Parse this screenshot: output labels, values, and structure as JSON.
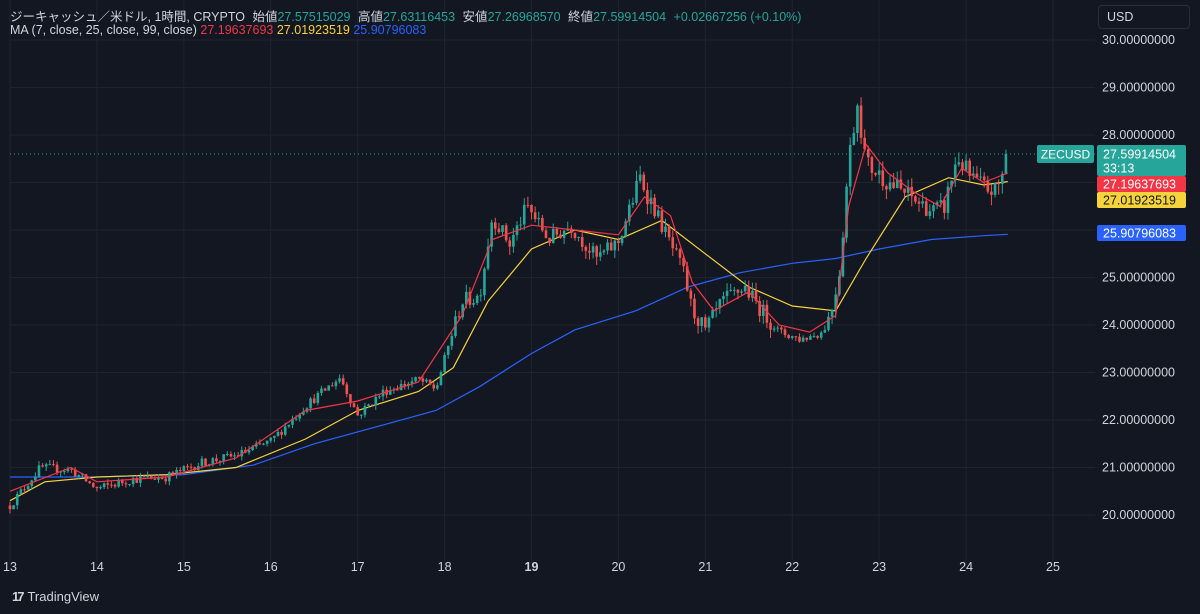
{
  "header": {
    "symbol_title": "ジーキャッシュ／米ドル, 1時間, CRYPTO",
    "open_label": "始値",
    "open_value": "27.57515029",
    "high_label": "高値",
    "high_value": "27.63116453",
    "low_label": "安値",
    "low_value": "27.26968570",
    "close_label": "終値",
    "close_value": "27.59914504",
    "change_value": "+0.02667256 (+0.10%)",
    "ma_label": "MA (7, close, 25, close, 99, close)",
    "ma7_value": "27.19637693",
    "ma25_value": "27.01923519",
    "ma99_value": "25.90796083"
  },
  "currency_button": "USD",
  "symbol_tag": "ZECUSD",
  "price_tag": {
    "value": "27.59914504",
    "countdown": "33:13"
  },
  "ma_tags": [
    "27.19637693",
    "27.01923519",
    "25.90796083"
  ],
  "brand": "TradingView",
  "icons": {
    "brand_logo": "tradingview-logo-icon"
  },
  "colors": {
    "background": "#131722",
    "up": "#26a69a",
    "down": "#ef5350",
    "ma7": "#f23645",
    "ma25": "#f5d33b",
    "ma99": "#2962ff",
    "grid": "#1f232e",
    "text": "#d1d4dc"
  },
  "chart_data": {
    "type": "candlestick",
    "y_axis_labels": [
      "30.00000000",
      "29.00000000",
      "28.00000000",
      "27.00000000",
      "26.00000000",
      "25.00000000",
      "24.00000000",
      "23.00000000",
      "22.00000000",
      "21.00000000",
      "20.00000000"
    ],
    "x_axis_labels": [
      "13",
      "14",
      "15",
      "16",
      "17",
      "18",
      "19",
      "20",
      "21",
      "22",
      "23",
      "24",
      "25"
    ],
    "ylim": [
      19.55,
      30.45
    ],
    "grid": true,
    "x_keypoints": [
      [
        13.0,
        20.2
      ],
      [
        13.35,
        21.0
      ],
      [
        13.7,
        20.95
      ],
      [
        14.0,
        20.55
      ],
      [
        14.4,
        20.75
      ],
      [
        14.8,
        20.8
      ],
      [
        15.2,
        21.1
      ],
      [
        15.6,
        21.25
      ],
      [
        16.0,
        21.55
      ],
      [
        16.4,
        22.3
      ],
      [
        16.8,
        22.9
      ],
      [
        17.0,
        22.1
      ],
      [
        17.3,
        22.6
      ],
      [
        17.7,
        22.85
      ],
      [
        17.9,
        22.65
      ],
      [
        18.05,
        23.6
      ],
      [
        18.2,
        24.5
      ],
      [
        18.4,
        24.6
      ],
      [
        18.55,
        26.3
      ],
      [
        18.75,
        25.7
      ],
      [
        18.95,
        26.5
      ],
      [
        19.2,
        25.8
      ],
      [
        19.45,
        26.1
      ],
      [
        19.75,
        25.4
      ],
      [
        20.0,
        25.75
      ],
      [
        20.25,
        27.1
      ],
      [
        20.5,
        26.1
      ],
      [
        20.75,
        25.1
      ],
      [
        20.85,
        24.3
      ],
      [
        21.0,
        23.9
      ],
      [
        21.2,
        24.5
      ],
      [
        21.45,
        24.8
      ],
      [
        21.65,
        24.3
      ],
      [
        21.85,
        23.85
      ],
      [
        22.1,
        23.7
      ],
      [
        22.35,
        23.85
      ],
      [
        22.45,
        24.3
      ],
      [
        22.55,
        25.2
      ],
      [
        22.65,
        27.5
      ],
      [
        22.75,
        28.7
      ],
      [
        22.85,
        27.4
      ],
      [
        23.05,
        27.1
      ],
      [
        23.35,
        26.7
      ],
      [
        23.6,
        26.4
      ],
      [
        23.75,
        26.5
      ],
      [
        23.9,
        27.55
      ],
      [
        24.05,
        27.1
      ],
      [
        24.2,
        26.9
      ],
      [
        24.35,
        26.8
      ],
      [
        24.45,
        27.35
      ],
      [
        24.48,
        27.59
      ]
    ],
    "ma7_points": [
      [
        13.0,
        20.5
      ],
      [
        13.7,
        21.0
      ],
      [
        14.0,
        20.7
      ],
      [
        14.8,
        20.8
      ],
      [
        15.6,
        21.2
      ],
      [
        16.4,
        22.2
      ],
      [
        17.0,
        22.4
      ],
      [
        17.7,
        22.8
      ],
      [
        18.2,
        24.2
      ],
      [
        18.55,
        25.8
      ],
      [
        19.0,
        26.1
      ],
      [
        19.5,
        26.0
      ],
      [
        20.0,
        25.9
      ],
      [
        20.3,
        26.7
      ],
      [
        20.6,
        26.3
      ],
      [
        20.85,
        24.9
      ],
      [
        21.1,
        24.3
      ],
      [
        21.5,
        24.7
      ],
      [
        21.85,
        24.0
      ],
      [
        22.2,
        23.85
      ],
      [
        22.5,
        24.2
      ],
      [
        22.65,
        26.5
      ],
      [
        22.85,
        27.8
      ],
      [
        23.1,
        27.2
      ],
      [
        23.4,
        26.8
      ],
      [
        23.7,
        26.5
      ],
      [
        23.95,
        27.3
      ],
      [
        24.2,
        27.0
      ],
      [
        24.48,
        27.2
      ]
    ],
    "ma25_points": [
      [
        13.0,
        20.3
      ],
      [
        13.4,
        20.7
      ],
      [
        14.0,
        20.8
      ],
      [
        14.8,
        20.85
      ],
      [
        15.6,
        21.0
      ],
      [
        16.4,
        21.6
      ],
      [
        17.0,
        22.2
      ],
      [
        17.7,
        22.6
      ],
      [
        18.1,
        23.1
      ],
      [
        18.5,
        24.5
      ],
      [
        19.0,
        25.6
      ],
      [
        19.5,
        26.0
      ],
      [
        20.0,
        25.8
      ],
      [
        20.5,
        26.2
      ],
      [
        21.0,
        25.5
      ],
      [
        21.5,
        24.8
      ],
      [
        22.0,
        24.4
      ],
      [
        22.5,
        24.3
      ],
      [
        22.85,
        25.4
      ],
      [
        23.3,
        26.7
      ],
      [
        23.8,
        27.1
      ],
      [
        24.2,
        26.95
      ],
      [
        24.48,
        27.02
      ]
    ],
    "ma99_points": [
      [
        13.0,
        20.8
      ],
      [
        14.0,
        20.8
      ],
      [
        15.0,
        20.85
      ],
      [
        15.8,
        21.05
      ],
      [
        16.5,
        21.5
      ],
      [
        17.3,
        21.9
      ],
      [
        17.9,
        22.2
      ],
      [
        18.4,
        22.7
      ],
      [
        19.0,
        23.4
      ],
      [
        19.5,
        23.9
      ],
      [
        20.2,
        24.3
      ],
      [
        20.8,
        24.8
      ],
      [
        21.4,
        25.1
      ],
      [
        22.0,
        25.3
      ],
      [
        22.5,
        25.4
      ],
      [
        23.0,
        25.6
      ],
      [
        23.6,
        25.8
      ],
      [
        24.2,
        25.88
      ],
      [
        24.48,
        25.91
      ]
    ],
    "last_close": 27.59914504
  }
}
